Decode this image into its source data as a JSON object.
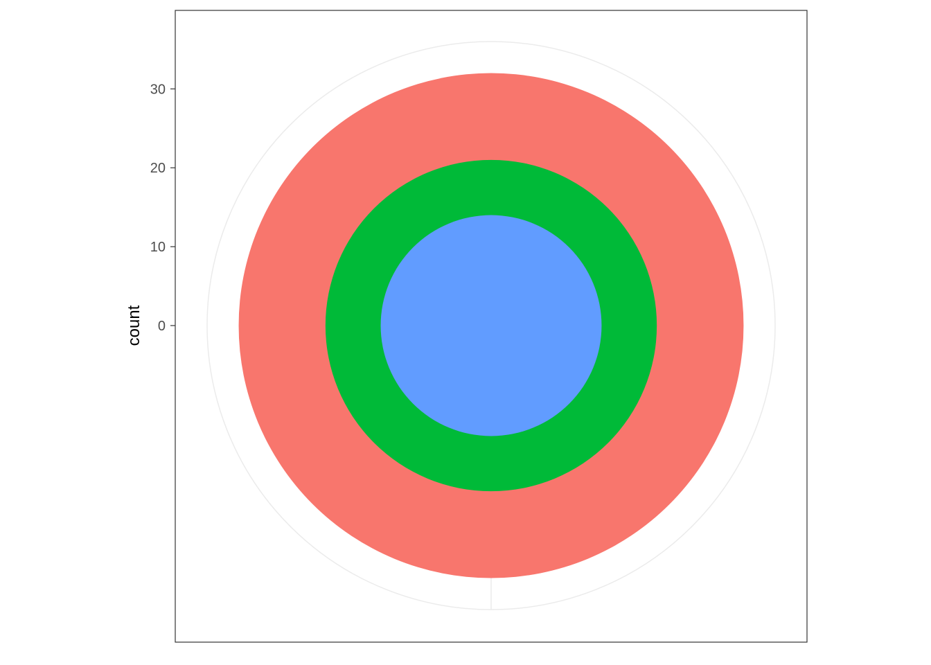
{
  "chart_data": {
    "type": "pie",
    "subtype": "stacked-bar-polar-rings",
    "title": "",
    "xlabel": "",
    "ylabel": "count",
    "ylim": [
      0,
      36
    ],
    "y_ticks": [
      0,
      10,
      20,
      30
    ],
    "y_tick_labels": [
      "0",
      "10",
      "20",
      "30"
    ],
    "series": [
      {
        "value": 14,
        "color": "#619CFF"
      },
      {
        "value": 7,
        "color": "#00BA38"
      },
      {
        "value": 11,
        "color": "#F8766D"
      }
    ],
    "grid": true,
    "grid_color": "#ebebeb",
    "panel_border_color": "#333333",
    "legend": "none"
  }
}
